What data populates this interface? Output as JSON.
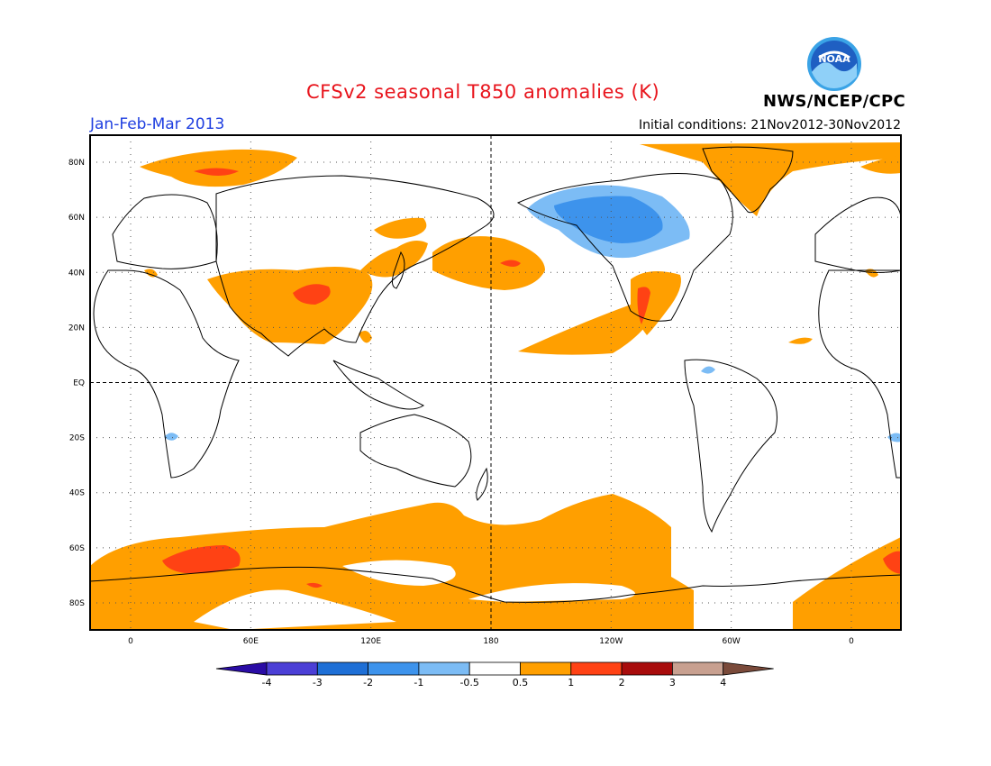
{
  "title": "CFSv2 seasonal T850 anomalies (K)",
  "period": "Jan-Feb-Mar 2013",
  "initial_conditions": "Initial conditions: 21Nov2012-30Nov2012",
  "agency": "NWS/NCEP/CPC",
  "logo_text": "NOAA",
  "map": {
    "lat_labels": [
      {
        "lat": 80,
        "label": "80N"
      },
      {
        "lat": 60,
        "label": "60N"
      },
      {
        "lat": 40,
        "label": "40N"
      },
      {
        "lat": 20,
        "label": "20N"
      },
      {
        "lat": 0,
        "label": "EQ"
      },
      {
        "lat": -20,
        "label": "20S"
      },
      {
        "lat": -40,
        "label": "40S"
      },
      {
        "lat": -60,
        "label": "60S"
      },
      {
        "lat": -80,
        "label": "80S"
      }
    ],
    "lon_labels": [
      {
        "lon": 0,
        "label": "0"
      },
      {
        "lon": 60,
        "label": "60E"
      },
      {
        "lon": 120,
        "label": "120E"
      },
      {
        "lon": 180,
        "label": "180"
      },
      {
        "lon": 240,
        "label": "120W"
      },
      {
        "lon": 300,
        "label": "60W"
      },
      {
        "lon": 360,
        "label": "0"
      }
    ]
  },
  "colorbar": {
    "labels": [
      "-4",
      "-3",
      "-2",
      "-1",
      "-0.5",
      "0.5",
      "1",
      "2",
      "3",
      "4"
    ],
    "colors": [
      "#2a0ca5",
      "#4b3fd6",
      "#1e6fd6",
      "#3d93ec",
      "#7cbcf5",
      "#ffffff",
      "#ff9f00",
      "#ff4214",
      "#a80c0c",
      "#c8a090",
      "#7a4a3a"
    ]
  },
  "chart_data": {
    "type": "heatmap",
    "variable": "T850 anomalies",
    "units": "K",
    "levels": [
      -4,
      -3,
      -2,
      -1,
      -0.5,
      0.5,
      1,
      2,
      3,
      4
    ],
    "features": [
      {
        "region": "North Pacific / Gulf of Alaska",
        "value_range": [
          -2,
          -0.5
        ]
      },
      {
        "region": "Central Asia / Tibet",
        "value_range": [
          0.5,
          2
        ]
      },
      {
        "region": "Central North Pacific",
        "value_range": [
          0.5,
          2
        ]
      },
      {
        "region": "Greenland Sea / Svalbard",
        "value_range": [
          0.5,
          2
        ]
      },
      {
        "region": "Southwestern North America / Mexico",
        "value_range": [
          0.5,
          2
        ]
      },
      {
        "region": "Southern Ocean / Antarctica",
        "value_range": [
          0.5,
          2
        ]
      }
    ]
  }
}
